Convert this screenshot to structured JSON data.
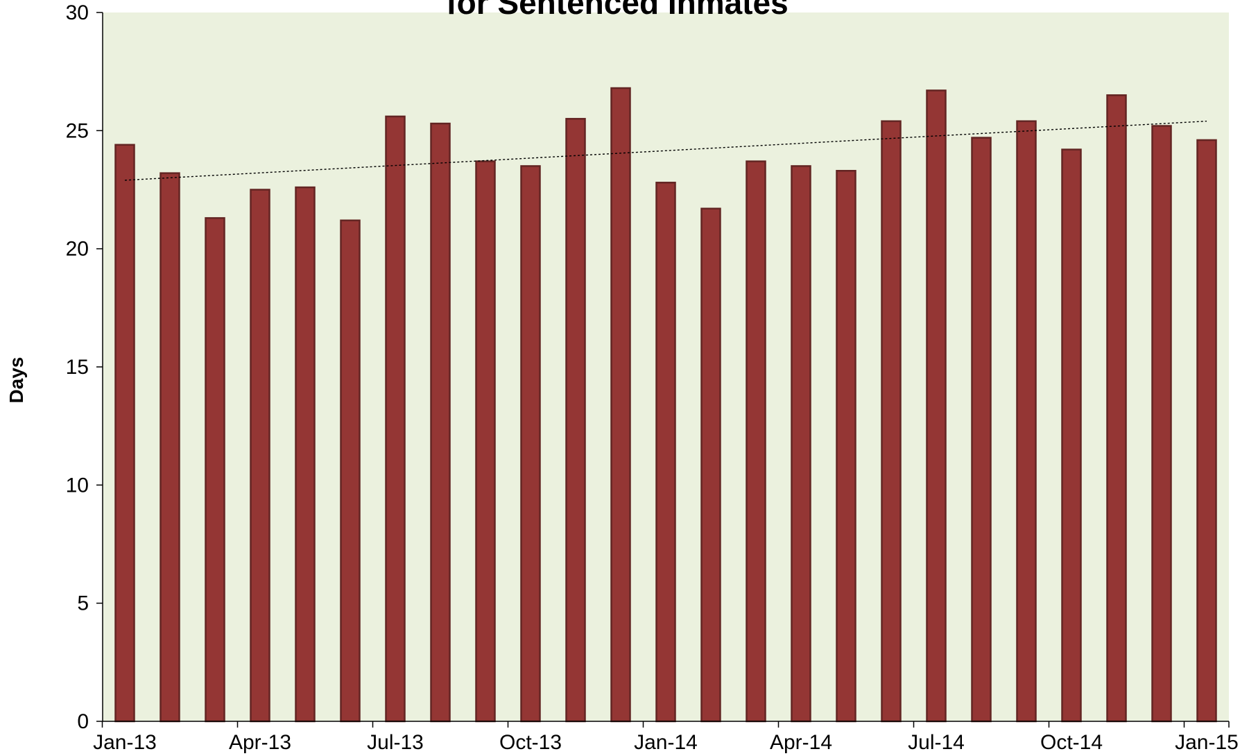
{
  "chart_data": {
    "type": "bar",
    "title": "for Sentenced Inmates",
    "xlabel": "",
    "ylabel": "Days",
    "ylim": [
      0,
      30
    ],
    "y_ticks": [
      0,
      5,
      10,
      15,
      20,
      25,
      30
    ],
    "x_ticks": [
      "Jan-13",
      "Apr-13",
      "Jul-13",
      "Oct-13",
      "Jan-14",
      "Apr-14",
      "Jul-14",
      "Oct-14",
      "Jan-15"
    ],
    "categories": [
      "Jan-13",
      "Feb-13",
      "Mar-13",
      "Apr-13",
      "May-13",
      "Jun-13",
      "Jul-13",
      "Aug-13",
      "Sep-13",
      "Oct-13",
      "Nov-13",
      "Dec-13",
      "Jan-14",
      "Feb-14",
      "Mar-14",
      "Apr-14",
      "May-14",
      "Jun-14",
      "Jul-14",
      "Aug-14",
      "Sep-14",
      "Oct-14",
      "Nov-14",
      "Dec-14",
      "Jan-15"
    ],
    "values": [
      24.4,
      23.2,
      21.3,
      22.5,
      22.6,
      21.2,
      25.6,
      25.3,
      23.7,
      23.5,
      25.5,
      26.8,
      22.8,
      21.7,
      23.7,
      23.5,
      23.3,
      25.4,
      26.7,
      24.7,
      25.4,
      24.2,
      26.5,
      25.2,
      24.6
    ],
    "trendline": {
      "type": "linear",
      "start": {
        "x": "Jan-13",
        "y": 22.9
      },
      "end": {
        "x": "Jan-15",
        "y": 25.4
      }
    },
    "grid": false,
    "legend": "none",
    "colors": {
      "bar_fill": "#943634",
      "bar_stroke": "#632523",
      "plot_background": "#EBF1DE",
      "trendline": "#000000"
    }
  }
}
